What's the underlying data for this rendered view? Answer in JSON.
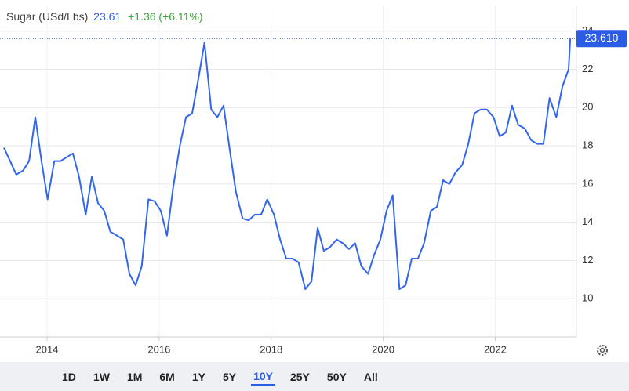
{
  "header": {
    "title": "Sugar (USd/Lbs)",
    "price": "23.61",
    "change": "+1.36 (+6.11%)"
  },
  "chart_data": {
    "type": "line",
    "x": [
      2013.23,
      2013.34,
      2013.45,
      2013.57,
      2013.68,
      2013.79,
      2013.9,
      2014.01,
      2014.13,
      2014.24,
      2014.35,
      2014.46,
      2014.57,
      2014.69,
      2014.8,
      2014.91,
      2015.02,
      2015.13,
      2015.25,
      2015.36,
      2015.47,
      2015.58,
      2015.69,
      2015.81,
      2015.92,
      2016.03,
      2016.14,
      2016.25,
      2016.37,
      2016.48,
      2016.59,
      2016.7,
      2016.81,
      2016.93,
      2017.04,
      2017.15,
      2017.26,
      2017.37,
      2017.49,
      2017.6,
      2017.71,
      2017.82,
      2017.93,
      2018.05,
      2018.16,
      2018.27,
      2018.38,
      2018.49,
      2018.61,
      2018.72,
      2018.83,
      2018.94,
      2019.05,
      2019.17,
      2019.28,
      2019.39,
      2019.5,
      2019.61,
      2019.73,
      2019.84,
      2019.95,
      2020.06,
      2020.17,
      2020.29,
      2020.4,
      2020.51,
      2020.62,
      2020.73,
      2020.85,
      2020.96,
      2021.07,
      2021.18,
      2021.29,
      2021.41,
      2021.52,
      2021.63,
      2021.74,
      2021.85,
      2021.97,
      2022.08,
      2022.19,
      2022.3,
      2022.41,
      2022.53,
      2022.64,
      2022.75,
      2022.86,
      2022.97,
      2023.09,
      2023.2,
      2023.31,
      2023.34
    ],
    "series": [
      {
        "name": "Sugar",
        "color": "#3366ee",
        "values": [
          17.9,
          17.2,
          16.5,
          16.7,
          17.2,
          19.5,
          17.2,
          15.2,
          17.2,
          17.2,
          17.4,
          17.6,
          16.4,
          14.4,
          16.4,
          15.0,
          14.6,
          13.5,
          13.3,
          13.1,
          11.3,
          10.7,
          11.7,
          15.2,
          15.1,
          14.6,
          13.3,
          15.8,
          18.0,
          19.5,
          19.7,
          21.5,
          23.4,
          19.9,
          19.5,
          20.1,
          17.8,
          15.6,
          14.2,
          14.1,
          14.4,
          14.4,
          15.2,
          14.4,
          13.1,
          12.1,
          12.1,
          11.9,
          10.5,
          10.9,
          13.7,
          12.5,
          12.7,
          13.1,
          12.9,
          12.6,
          12.9,
          11.7,
          11.3,
          12.3,
          13.1,
          14.6,
          15.4,
          10.5,
          10.7,
          12.1,
          12.1,
          12.9,
          14.6,
          14.8,
          16.2,
          16.0,
          16.6,
          17.0,
          18.1,
          19.7,
          19.9,
          19.9,
          19.5,
          18.5,
          18.7,
          20.1,
          19.1,
          18.9,
          18.3,
          18.1,
          18.1,
          20.5,
          19.5,
          21.1,
          22.0,
          23.61
        ]
      }
    ],
    "last_label": "23.610",
    "xlim": [
      2013.23,
      2023.45
    ],
    "xticks": [
      2014,
      2016,
      2018,
      2020,
      2022
    ],
    "ylim": [
      8,
      25.3
    ],
    "yticks": [
      10,
      12,
      14,
      16,
      18,
      20,
      22,
      24
    ],
    "grid": true
  },
  "ranges": [
    "1D",
    "1W",
    "1M",
    "6M",
    "1Y",
    "5Y",
    "10Y",
    "25Y",
    "50Y",
    "All"
  ],
  "active_range": "10Y"
}
